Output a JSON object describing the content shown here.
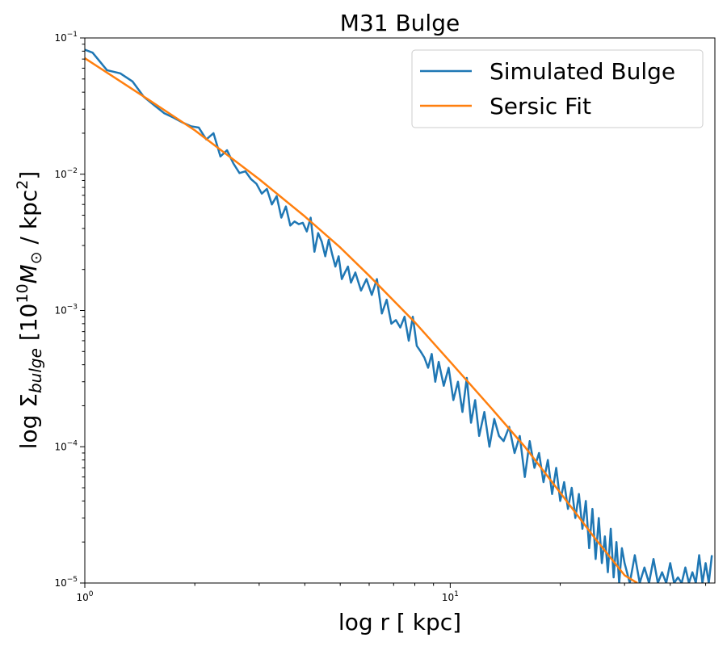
{
  "chart_data": {
    "type": "line",
    "title": "M31 Bulge",
    "xlabel": "log r [ kpc]",
    "ylabel": {
      "prefix": "log Σ",
      "sub": "bulge",
      "mid": " [10",
      "sup": "10",
      "msym": "M",
      "msub": "⊙",
      "unit": " / kpc",
      "unit_sup": "2",
      "suffix": "]"
    },
    "xscale": "log",
    "yscale": "log",
    "xlim": [
      1,
      53
    ],
    "ylim": [
      1e-05,
      0.1
    ],
    "x_ticks": [
      {
        "value": 1,
        "base": "10",
        "exp": "0"
      },
      {
        "value": 10,
        "base": "10",
        "exp": "1"
      }
    ],
    "y_ticks": [
      {
        "value": 1e-05,
        "base": "10",
        "exp": "−5"
      },
      {
        "value": 0.0001,
        "base": "10",
        "exp": "−4"
      },
      {
        "value": 0.001,
        "base": "10",
        "exp": "−3"
      },
      {
        "value": 0.01,
        "base": "10",
        "exp": "−2"
      },
      {
        "value": 0.1,
        "base": "10",
        "exp": "−1"
      }
    ],
    "grid": false,
    "legend_position": "top-right",
    "series": [
      {
        "name": "Simulated Bulge",
        "color": "#1f77b4",
        "x": [
          1.0,
          1.05,
          1.15,
          1.25,
          1.35,
          1.45,
          1.55,
          1.65,
          1.75,
          1.85,
          1.95,
          2.05,
          2.15,
          2.25,
          2.35,
          2.45,
          2.55,
          2.65,
          2.75,
          2.85,
          2.95,
          3.05,
          3.15,
          3.25,
          3.35,
          3.45,
          3.55,
          3.65,
          3.75,
          3.85,
          3.95,
          4.05,
          4.15,
          4.25,
          4.35,
          4.45,
          4.55,
          4.65,
          4.75,
          4.85,
          4.95,
          5.05,
          5.15,
          5.25,
          5.35,
          5.5,
          5.7,
          5.9,
          6.1,
          6.3,
          6.5,
          6.7,
          6.9,
          7.1,
          7.3,
          7.5,
          7.7,
          7.9,
          8.1,
          8.3,
          8.5,
          8.7,
          8.9,
          9.1,
          9.3,
          9.6,
          9.9,
          10.2,
          10.5,
          10.8,
          11.1,
          11.4,
          11.7,
          12.0,
          12.4,
          12.8,
          13.2,
          13.6,
          14.0,
          14.5,
          15.0,
          15.5,
          16.0,
          16.5,
          17.0,
          17.5,
          18.0,
          18.5,
          19.0,
          19.5,
          20.0,
          20.5,
          21.0,
          21.5,
          22.0,
          22.5,
          23.0,
          23.5,
          24.0,
          24.5,
          25.0,
          25.5,
          26.0,
          26.5,
          27.0,
          27.5,
          28.0,
          28.5,
          29.0,
          29.5,
          30.0,
          31.0,
          32.0,
          33.0,
          34.0,
          35.0,
          36.0,
          37.0,
          38.0,
          39.0,
          40.0,
          41.0,
          42.0,
          43.0,
          44.0,
          45.0,
          46.0,
          47.0,
          48.0,
          49.0,
          50.0,
          51.0,
          52.0
        ],
        "y": [
          0.082,
          0.078,
          0.058,
          0.055,
          0.048,
          0.037,
          0.032,
          0.028,
          0.026,
          0.024,
          0.0225,
          0.022,
          0.018,
          0.02,
          0.0135,
          0.015,
          0.012,
          0.0102,
          0.0105,
          0.0092,
          0.0085,
          0.0072,
          0.0078,
          0.006,
          0.0069,
          0.0048,
          0.0058,
          0.0042,
          0.0045,
          0.0043,
          0.0044,
          0.0038,
          0.0048,
          0.0027,
          0.0037,
          0.0032,
          0.0025,
          0.0033,
          0.0026,
          0.0021,
          0.0025,
          0.0017,
          0.0019,
          0.0021,
          0.0016,
          0.0019,
          0.0014,
          0.0017,
          0.0013,
          0.0017,
          0.00095,
          0.0012,
          0.0008,
          0.00085,
          0.00075,
          0.0009,
          0.0006,
          0.0009,
          0.00055,
          0.0005,
          0.00045,
          0.00038,
          0.00048,
          0.0003,
          0.00042,
          0.00028,
          0.00038,
          0.00022,
          0.0003,
          0.00018,
          0.00032,
          0.00015,
          0.00022,
          0.00012,
          0.00018,
          0.0001,
          0.00016,
          0.00012,
          0.00011,
          0.00014,
          9e-05,
          0.00012,
          6e-05,
          0.00011,
          7e-05,
          9e-05,
          5.5e-05,
          8e-05,
          4.5e-05,
          7e-05,
          4e-05,
          5.5e-05,
          3.5e-05,
          5e-05,
          3e-05,
          4.5e-05,
          2.5e-05,
          4e-05,
          1.8e-05,
          3.5e-05,
          1.5e-05,
          3e-05,
          1.4e-05,
          2.2e-05,
          1.2e-05,
          2.5e-05,
          1.1e-05,
          2e-05,
          1e-05,
          1.8e-05,
          1.4e-05,
          1e-05,
          1.6e-05,
          1e-05,
          1.3e-05,
          1e-05,
          1.5e-05,
          1e-05,
          1.2e-05,
          1e-05,
          1.4e-05,
          1e-05,
          1.1e-05,
          1e-05,
          1.3e-05,
          1e-05,
          1.2e-05,
          1e-05,
          1.6e-05,
          1e-05,
          1.4e-05,
          1e-05,
          1.6e-05
        ]
      },
      {
        "name": "Sersic Fit",
        "color": "#ff7f0e",
        "x": [
          1.0,
          1.5,
          2.0,
          3.0,
          4.0,
          5.0,
          6.0,
          8.0,
          10.0,
          13.0,
          16.0,
          20.0,
          25.0,
          30.0,
          32.5
        ],
        "y": [
          0.071,
          0.035,
          0.021,
          0.0092,
          0.0049,
          0.0029,
          0.0018,
          0.00082,
          0.00042,
          0.00019,
          0.0001,
          4.6e-05,
          2.1e-05,
          1.14e-05,
          1e-05
        ]
      }
    ]
  }
}
